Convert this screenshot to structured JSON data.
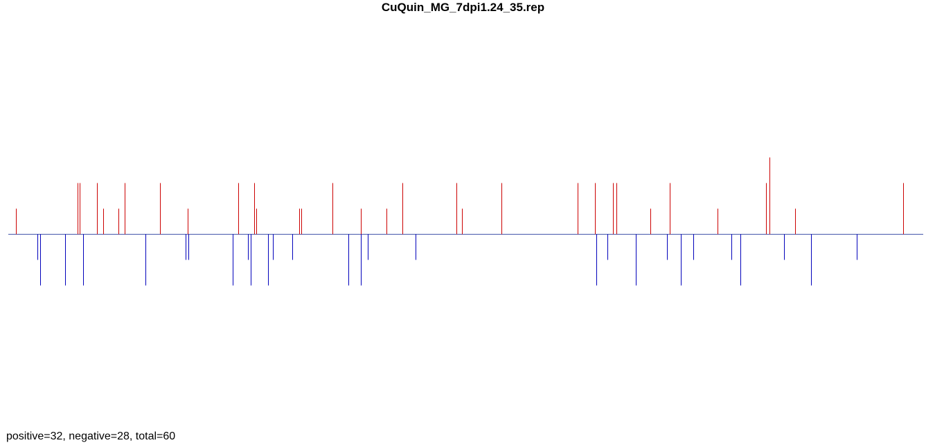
{
  "title": "CuQuin_MG_7dpi1.24_35.rep",
  "summary": "positive=32, negative=28, total=60",
  "colors": {
    "positive": "#cc0000",
    "negative": "#0000bb",
    "baseline": "#4455aa"
  },
  "chart_data": {
    "type": "bar",
    "title": "CuQuin_MG_7dpi1.24_35.rep",
    "xlabel": "",
    "ylabel": "",
    "grid": false,
    "legend": "none",
    "xlim": [
      0,
      1000
    ],
    "ylim": [
      -2,
      3
    ],
    "positive_count": 32,
    "negative_count": 28,
    "total": 60,
    "positive": [
      {
        "x": 8,
        "y": 1
      },
      {
        "x": 76,
        "y": 2
      },
      {
        "x": 78,
        "y": 2
      },
      {
        "x": 97,
        "y": 2
      },
      {
        "x": 104,
        "y": 1
      },
      {
        "x": 120,
        "y": 1
      },
      {
        "x": 127,
        "y": 2
      },
      {
        "x": 166,
        "y": 2
      },
      {
        "x": 196,
        "y": 1
      },
      {
        "x": 251,
        "y": 2
      },
      {
        "x": 269,
        "y": 2
      },
      {
        "x": 271,
        "y": 1
      },
      {
        "x": 318,
        "y": 1
      },
      {
        "x": 320,
        "y": 1
      },
      {
        "x": 354,
        "y": 2
      },
      {
        "x": 385,
        "y": 1
      },
      {
        "x": 413,
        "y": 1
      },
      {
        "x": 431,
        "y": 2
      },
      {
        "x": 490,
        "y": 2
      },
      {
        "x": 496,
        "y": 1
      },
      {
        "x": 539,
        "y": 2
      },
      {
        "x": 622,
        "y": 2
      },
      {
        "x": 641,
        "y": 2
      },
      {
        "x": 661,
        "y": 2
      },
      {
        "x": 665,
        "y": 2
      },
      {
        "x": 702,
        "y": 1
      },
      {
        "x": 723,
        "y": 2
      },
      {
        "x": 775,
        "y": 1
      },
      {
        "x": 828,
        "y": 2
      },
      {
        "x": 832,
        "y": 3
      },
      {
        "x": 860,
        "y": 1
      },
      {
        "x": 978,
        "y": 2
      }
    ],
    "negative": [
      {
        "x": 32,
        "y": -1
      },
      {
        "x": 35,
        "y": -2
      },
      {
        "x": 62,
        "y": -2
      },
      {
        "x": 82,
        "y": -2
      },
      {
        "x": 150,
        "y": -2
      },
      {
        "x": 194,
        "y": -1
      },
      {
        "x": 197,
        "y": -1
      },
      {
        "x": 245,
        "y": -2
      },
      {
        "x": 262,
        "y": -1
      },
      {
        "x": 265,
        "y": -2
      },
      {
        "x": 284,
        "y": -2
      },
      {
        "x": 289,
        "y": -1
      },
      {
        "x": 310,
        "y": -1
      },
      {
        "x": 372,
        "y": -2
      },
      {
        "x": 385,
        "y": -2
      },
      {
        "x": 393,
        "y": -1
      },
      {
        "x": 445,
        "y": -1
      },
      {
        "x": 643,
        "y": -2
      },
      {
        "x": 655,
        "y": -1
      },
      {
        "x": 686,
        "y": -2
      },
      {
        "x": 720,
        "y": -1
      },
      {
        "x": 735,
        "y": -2
      },
      {
        "x": 749,
        "y": -1
      },
      {
        "x": 790,
        "y": -1
      },
      {
        "x": 800,
        "y": -2
      },
      {
        "x": 848,
        "y": -1
      },
      {
        "x": 877,
        "y": -2
      },
      {
        "x": 927,
        "y": -1
      }
    ]
  }
}
